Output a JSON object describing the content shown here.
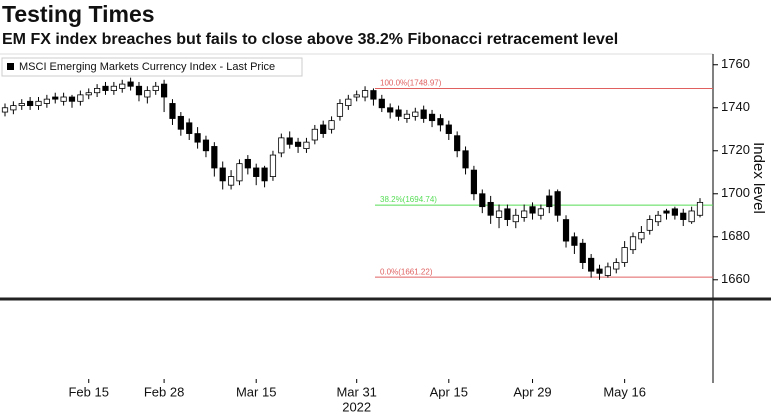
{
  "chart_data": {
    "type": "candlestick",
    "title": "Testing Times",
    "subtitle": "EM FX index breaches but fails to close above 38.2% Fibonacci retracement level",
    "legend_label": "MSCI Emerging Markets Currency Index - Last Price",
    "y_axis_label": "Index level",
    "year_label": "2022",
    "up_color": "#ffffff",
    "down_color": "#000000",
    "categories": [
      null,
      null,
      null,
      null,
      null,
      null,
      null,
      null,
      null,
      null,
      "Feb 15",
      null,
      null,
      null,
      null,
      null,
      null,
      null,
      null,
      "Feb 28",
      null,
      null,
      null,
      null,
      null,
      null,
      null,
      null,
      null,
      null,
      "Mar 15",
      null,
      null,
      null,
      null,
      null,
      null,
      null,
      null,
      null,
      null,
      null,
      "Mar 31",
      null,
      null,
      null,
      null,
      null,
      null,
      null,
      null,
      null,
      null,
      "Apr 15",
      null,
      null,
      null,
      null,
      null,
      null,
      null,
      null,
      null,
      "Apr 29",
      null,
      null,
      null,
      null,
      null,
      null,
      null,
      null,
      null,
      null,
      "May 16",
      null,
      null,
      null,
      null,
      null,
      null,
      null,
      null,
      null
    ],
    "open": [
      1738,
      1739,
      1741,
      1743,
      1741,
      1742,
      1745,
      1743,
      1745,
      1743,
      1746,
      1747,
      1750,
      1748,
      1749,
      1752,
      1750,
      1745,
      1748,
      1751,
      1742,
      1736,
      1733,
      1728,
      1725,
      1722,
      1712,
      1704,
      1706,
      1716,
      1712,
      1712,
      1708,
      1719,
      1726,
      1724,
      1721,
      1725,
      1732,
      1730,
      1736,
      1741,
      1745,
      1745,
      1748,
      1744,
      1740,
      1739,
      1735,
      1736,
      1739,
      1737,
      1735,
      1732,
      1727,
      1720,
      1711,
      1700,
      1696,
      1689,
      1693,
      1687,
      1689,
      1694,
      1690,
      1699,
      1701,
      1688,
      1680,
      1677,
      1670,
      1665,
      1662,
      1665,
      1668,
      1674,
      1679,
      1683,
      1687,
      1692,
      1693,
      1691,
      1687,
      1690
    ],
    "high": [
      1742,
      1743,
      1744,
      1745,
      1745,
      1746,
      1747,
      1747,
      1746,
      1748,
      1749,
      1751,
      1752,
      1752,
      1753,
      1754,
      1752,
      1750,
      1752,
      1753,
      1744,
      1738,
      1735,
      1731,
      1727,
      1724,
      1715,
      1711,
      1716,
      1718,
      1714,
      1713,
      1720,
      1728,
      1729,
      1726,
      1726,
      1732,
      1734,
      1736,
      1744,
      1746,
      1748,
      1750,
      1749,
      1746,
      1742,
      1741,
      1739,
      1740,
      1741,
      1739,
      1737,
      1734,
      1729,
      1722,
      1713,
      1702,
      1699,
      1695,
      1695,
      1693,
      1695,
      1696,
      1695,
      1702,
      1702,
      1690,
      1682,
      1679,
      1672,
      1667,
      1668,
      1670,
      1678,
      1682,
      1685,
      1690,
      1692,
      1693,
      1694,
      1693,
      1694,
      1698
    ],
    "low": [
      1736,
      1737,
      1739,
      1739,
      1739,
      1740,
      1742,
      1741,
      1740,
      1741,
      1744,
      1745,
      1746,
      1746,
      1747,
      1748,
      1743,
      1742,
      1746,
      1738,
      1732,
      1727,
      1725,
      1721,
      1717,
      1708,
      1702,
      1702,
      1704,
      1709,
      1704,
      1703,
      1706,
      1717,
      1721,
      1719,
      1719,
      1723,
      1726,
      1728,
      1734,
      1739,
      1743,
      1743,
      1741,
      1738,
      1735,
      1734,
      1733,
      1734,
      1733,
      1731,
      1729,
      1725,
      1717,
      1709,
      1697,
      1691,
      1686,
      1684,
      1685,
      1684,
      1687,
      1688,
      1688,
      1691,
      1687,
      1675,
      1672,
      1665,
      1661,
      1660,
      1661,
      1663,
      1666,
      1672,
      1677,
      1681,
      1685,
      1688,
      1688,
      1685,
      1686,
      1689
    ],
    "close": [
      1740,
      1741,
      1742,
      1741,
      1743,
      1744,
      1744,
      1745,
      1743,
      1746,
      1747,
      1749,
      1748,
      1750,
      1751,
      1750,
      1746,
      1748,
      1750,
      1745,
      1735,
      1730,
      1728,
      1724,
      1720,
      1712,
      1706,
      1708,
      1714,
      1712,
      1708,
      1706,
      1718,
      1726,
      1723,
      1722,
      1724,
      1730,
      1728,
      1734,
      1742,
      1744,
      1746,
      1748,
      1744,
      1740,
      1738,
      1736,
      1737,
      1738,
      1735,
      1734,
      1732,
      1728,
      1720,
      1712,
      1700,
      1694,
      1690,
      1692,
      1688,
      1690,
      1692,
      1691,
      1693,
      1694,
      1690,
      1678,
      1676,
      1668,
      1664,
      1663,
      1666,
      1668,
      1675,
      1680,
      1682,
      1688,
      1690,
      1691,
      1690,
      1688,
      1692,
      1696
    ],
    "fib_levels": [
      {
        "value": 1748.97,
        "label": "100.0%(1748.97)",
        "color": "#e06060"
      },
      {
        "value": 1694.74,
        "label": "38.2%(1694.74)",
        "color": "#55dd55"
      },
      {
        "value": 1661.22,
        "label": "0.0%(1661.22)",
        "color": "#e06060"
      }
    ],
    "ylim": [
      1612,
      1765
    ],
    "yticks": [
      1660,
      1680,
      1700,
      1720,
      1740,
      1760
    ]
  }
}
